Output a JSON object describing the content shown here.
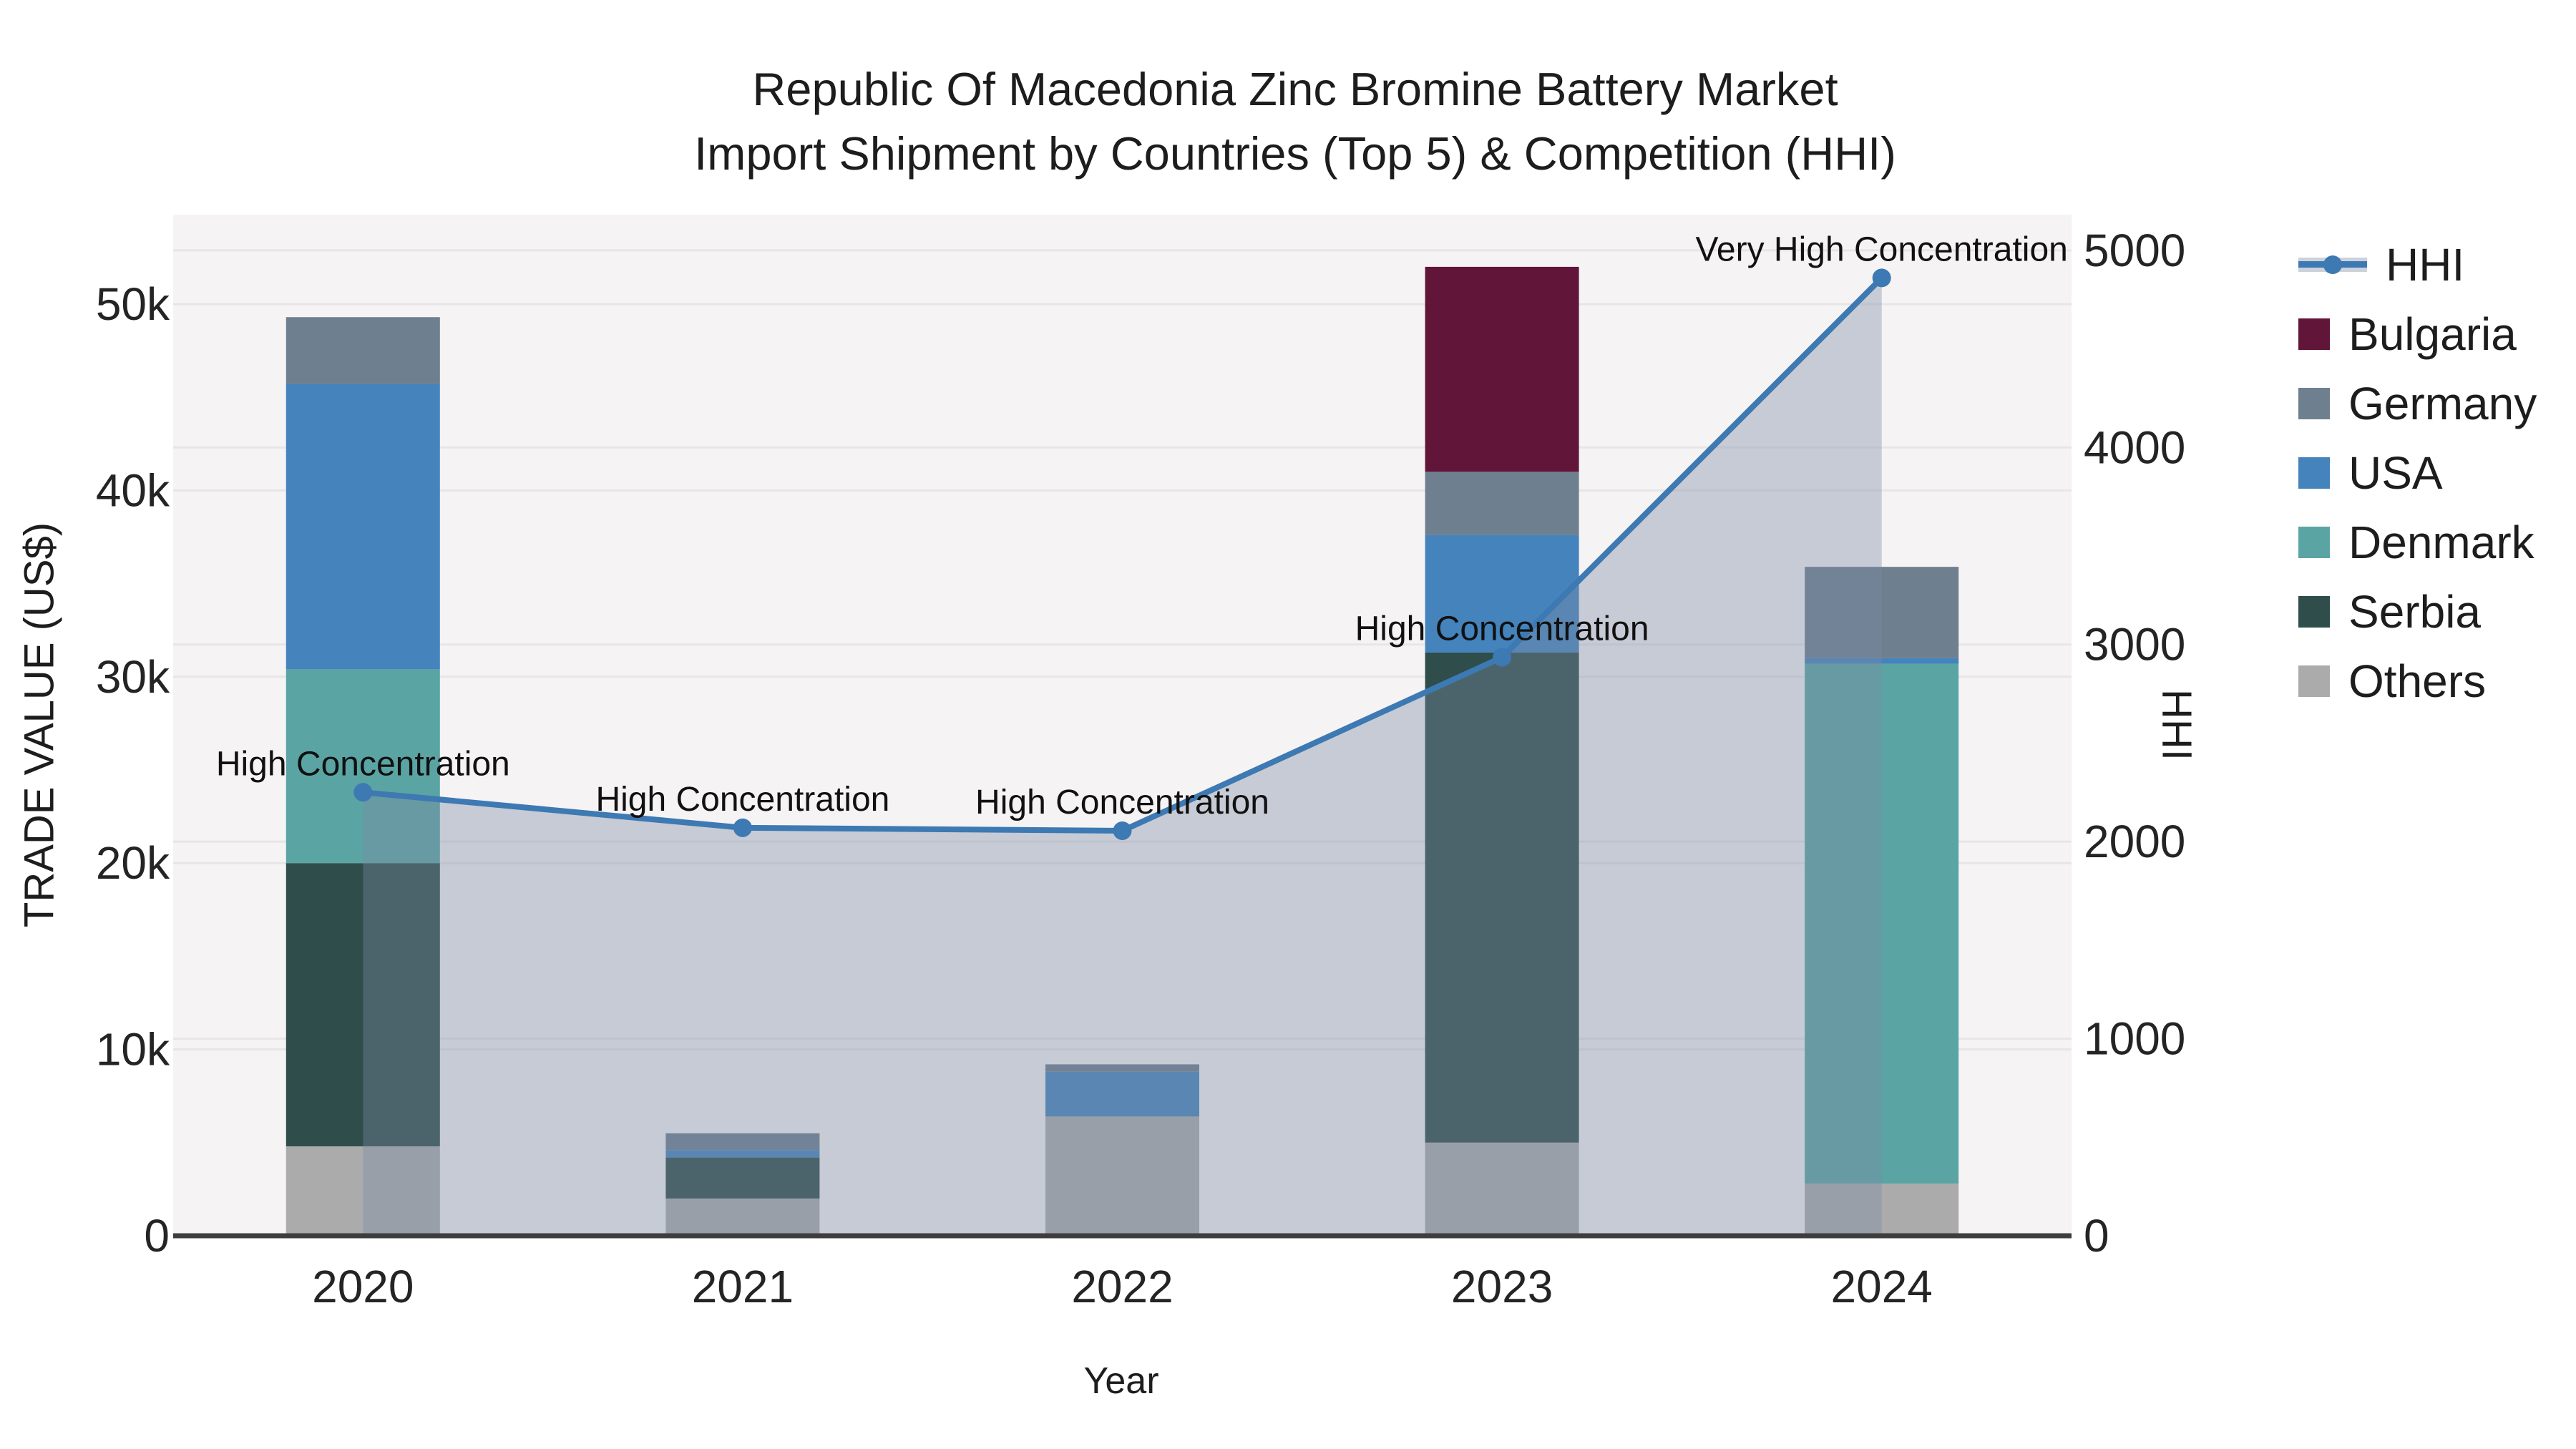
{
  "title": {
    "line1": "Republic Of Macedonia Zinc Bromine Battery Market",
    "line2": "Import Shipment by Countries (Top 5) & Competition (HHI)"
  },
  "chart_data": {
    "type": "combo_stacked_bar_line",
    "categories": [
      "2020",
      "2021",
      "2022",
      "2023",
      "2024"
    ],
    "bar_series": [
      {
        "name": "Others",
        "color": "#ababab",
        "values": [
          4800,
          2000,
          6400,
          5000,
          2800
        ]
      },
      {
        "name": "Serbia",
        "color": "#2e4d4b",
        "values": [
          15200,
          2200,
          0,
          26300,
          0
        ]
      },
      {
        "name": "Denmark",
        "color": "#5ba4a4",
        "values": [
          10400,
          0,
          0,
          0,
          27900
        ]
      },
      {
        "name": "USA",
        "color": "#4483bc",
        "values": [
          15300,
          400,
          2400,
          6300,
          300
        ]
      },
      {
        "name": "Germany",
        "color": "#6e7f90",
        "values": [
          3600,
          900,
          400,
          3400,
          4900
        ]
      },
      {
        "name": "Bulgaria",
        "color": "#601539",
        "values": [
          0,
          0,
          0,
          11000,
          0
        ]
      }
    ],
    "line_series": {
      "name": "HHI",
      "color": "#3d79b2",
      "area_fill": "rgba(124,139,164,0.38)",
      "values": [
        2250,
        2070,
        2055,
        2935,
        4860
      ]
    },
    "annotations": [
      {
        "index": 0,
        "text": "High Concentration"
      },
      {
        "index": 1,
        "text": "High Concentration"
      },
      {
        "index": 2,
        "text": "High Concentration"
      },
      {
        "index": 3,
        "text": "High Concentration"
      },
      {
        "index": 4,
        "text": "Very High Concentration"
      }
    ],
    "left_axis": {
      "title": "TRADE VALUE (US$)",
      "tick_labels": [
        "0",
        "10k",
        "20k",
        "30k",
        "40k",
        "50k"
      ],
      "tick_values": [
        0,
        10000,
        20000,
        30000,
        40000,
        50000
      ],
      "max": 54800
    },
    "right_axis": {
      "title": "HHI",
      "tick_labels": [
        "0",
        "1000",
        "2000",
        "3000",
        "4000",
        "5000"
      ],
      "tick_values": [
        0,
        1000,
        2000,
        3000,
        4000,
        5000
      ],
      "max": 5181
    },
    "x_axis": {
      "title": "Year"
    },
    "legend_order": [
      "HHI",
      "Bulgaria",
      "Germany",
      "USA",
      "Denmark",
      "Serbia",
      "Others"
    ],
    "layout": {
      "grid": true,
      "legend_position": "right",
      "plot_bg": "#f5f3f4",
      "grid_color": "#e7e5e6",
      "axis_line_color": "#3d3d3d"
    }
  }
}
